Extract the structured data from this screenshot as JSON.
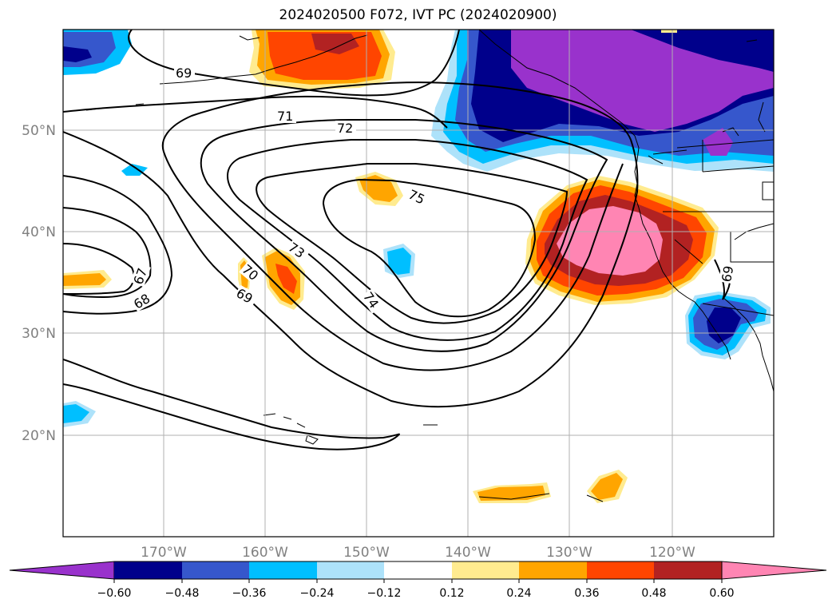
{
  "title": "2024020500 F072, IVT PC (2024020900)",
  "map": {
    "region": "North Pacific / US West Coast",
    "lon_ticks": [
      "170°W",
      "160°W",
      "150°W",
      "140°W",
      "130°W",
      "120°W"
    ],
    "lat_ticks": [
      "50°N",
      "40°N",
      "30°N",
      "20°N"
    ],
    "grid_color": "#b0b0b0"
  },
  "contours": {
    "labels": [
      "69",
      "71",
      "72",
      "75",
      "73",
      "70",
      "69",
      "67",
      "68",
      "74",
      "69"
    ],
    "color": "#000000"
  },
  "colorbar": {
    "ticks": [
      "−0.60",
      "−0.48",
      "−0.36",
      "−0.24",
      "−0.12",
      "0.12",
      "0.24",
      "0.36",
      "0.48",
      "0.60"
    ],
    "colors": [
      "#9932CC",
      "#00008B",
      "#3657CC",
      "#00BFFF",
      "#ADE2FA",
      "#FFFFFF",
      "#FFEB8F",
      "#FFA500",
      "#FF4500",
      "#B22222",
      "#FF85B3"
    ]
  }
}
